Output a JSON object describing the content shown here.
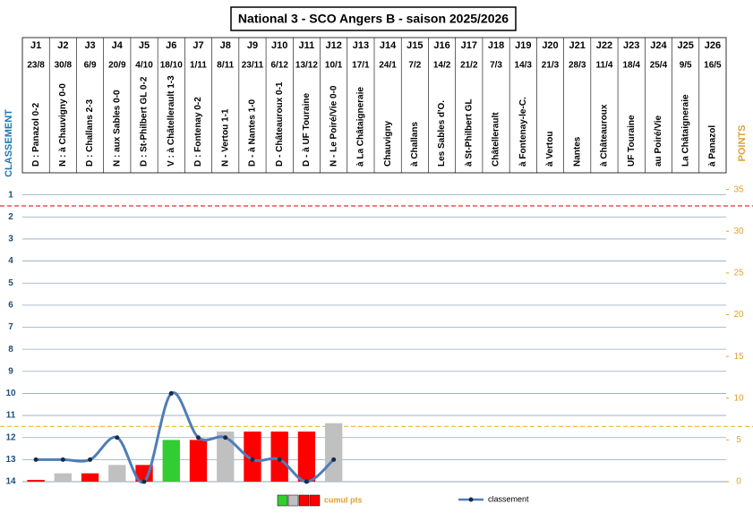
{
  "chart_data": {
    "type": "bar_line",
    "title": "National 3 - SCO Angers B - saison 2025/2026",
    "categories": [
      "J1",
      "J2",
      "J3",
      "J4",
      "J5",
      "J6",
      "J7",
      "J8",
      "J9",
      "J10",
      "J11",
      "J12",
      "J13",
      "J14",
      "J15",
      "J16",
      "J17",
      "J18",
      "J19",
      "J20",
      "J21",
      "J22",
      "J23",
      "J24",
      "J25",
      "J26"
    ],
    "dates": [
      "23/8",
      "30/8",
      "6/9",
      "20/9",
      "4/10",
      "18/10",
      "1/11",
      "8/11",
      "23/11",
      "6/12",
      "13/12",
      "10/1",
      "17/1",
      "24/1",
      "7/2",
      "14/2",
      "21/2",
      "7/3",
      "14/3",
      "21/3",
      "28/3",
      "11/4",
      "18/4",
      "25/4",
      "9/5",
      "16/5"
    ],
    "match_labels": [
      "D : Panazol 0-2",
      "N : à Chauvigny 0-0",
      "D : Challans 2-3",
      "N : aux Sables 0-0",
      "D : St-Philbert GL 0-2",
      "V : à Châtellerault 1-3",
      "D : Fontenay 0-2",
      "N - Vertou 1-1",
      "D - à Nantes 1-0",
      "D - Châteauroux 0-1",
      "D - à UF Touraine",
      "N - Le Poiré/Vie 0-0",
      "à La Châtaigneraie",
      "Chauvigny",
      "à Challans",
      "Les Sables d'O.",
      "à St-Philbert GL",
      "Châtellerault",
      "à Fontenay-le-C.",
      "à Vertou",
      "Nantes",
      "à Châteauroux",
      "UF Touraine",
      "au Poiré/Vie",
      "La Châtaigneraie",
      "à Panazol"
    ],
    "ylabel": "CLASSEMENT",
    "y2label": "POINTS",
    "ylim": [
      0,
      14
    ],
    "y_reversed": true,
    "yticks": [
      1,
      2,
      3,
      4,
      5,
      6,
      7,
      8,
      9,
      10,
      11,
      12,
      13,
      14
    ],
    "y2lim": [
      0,
      37
    ],
    "y2ticks": [
      0,
      5,
      10,
      15,
      20,
      25,
      30,
      35
    ],
    "grid": true,
    "ref_lines": [
      {
        "value": 1.5,
        "color": "#e03030"
      },
      {
        "value": 11.5,
        "color": "#f0c040"
      }
    ],
    "series": [
      {
        "name": "cumul pts",
        "kind": "bar",
        "axis": "y2",
        "color": "#ff0000",
        "colors": [
          "#ff0000",
          "#c0c0c0",
          "#ff0000",
          "#c0c0c0",
          "#ff0000",
          "#33cc33",
          "#ff0000",
          "#c0c0c0",
          "#ff0000",
          "#ff0000",
          "#ff0000",
          "#c0c0c0",
          null,
          null,
          null,
          null,
          null,
          null,
          null,
          null,
          null,
          null,
          null,
          null,
          null,
          null
        ],
        "values": [
          0,
          1,
          1,
          2,
          2,
          5,
          5,
          6,
          6,
          6,
          6,
          7,
          null,
          null,
          null,
          null,
          null,
          null,
          null,
          null,
          null,
          null,
          null,
          null,
          null,
          null
        ]
      },
      {
        "name": "classement",
        "kind": "line",
        "axis": "y",
        "color": "#4f7db8",
        "values": [
          13,
          13,
          13,
          12,
          14,
          10,
          12,
          12,
          13,
          13,
          14,
          13,
          null,
          null,
          null,
          null,
          null,
          null,
          null,
          null,
          null,
          null,
          null,
          null,
          null,
          null
        ]
      }
    ]
  }
}
